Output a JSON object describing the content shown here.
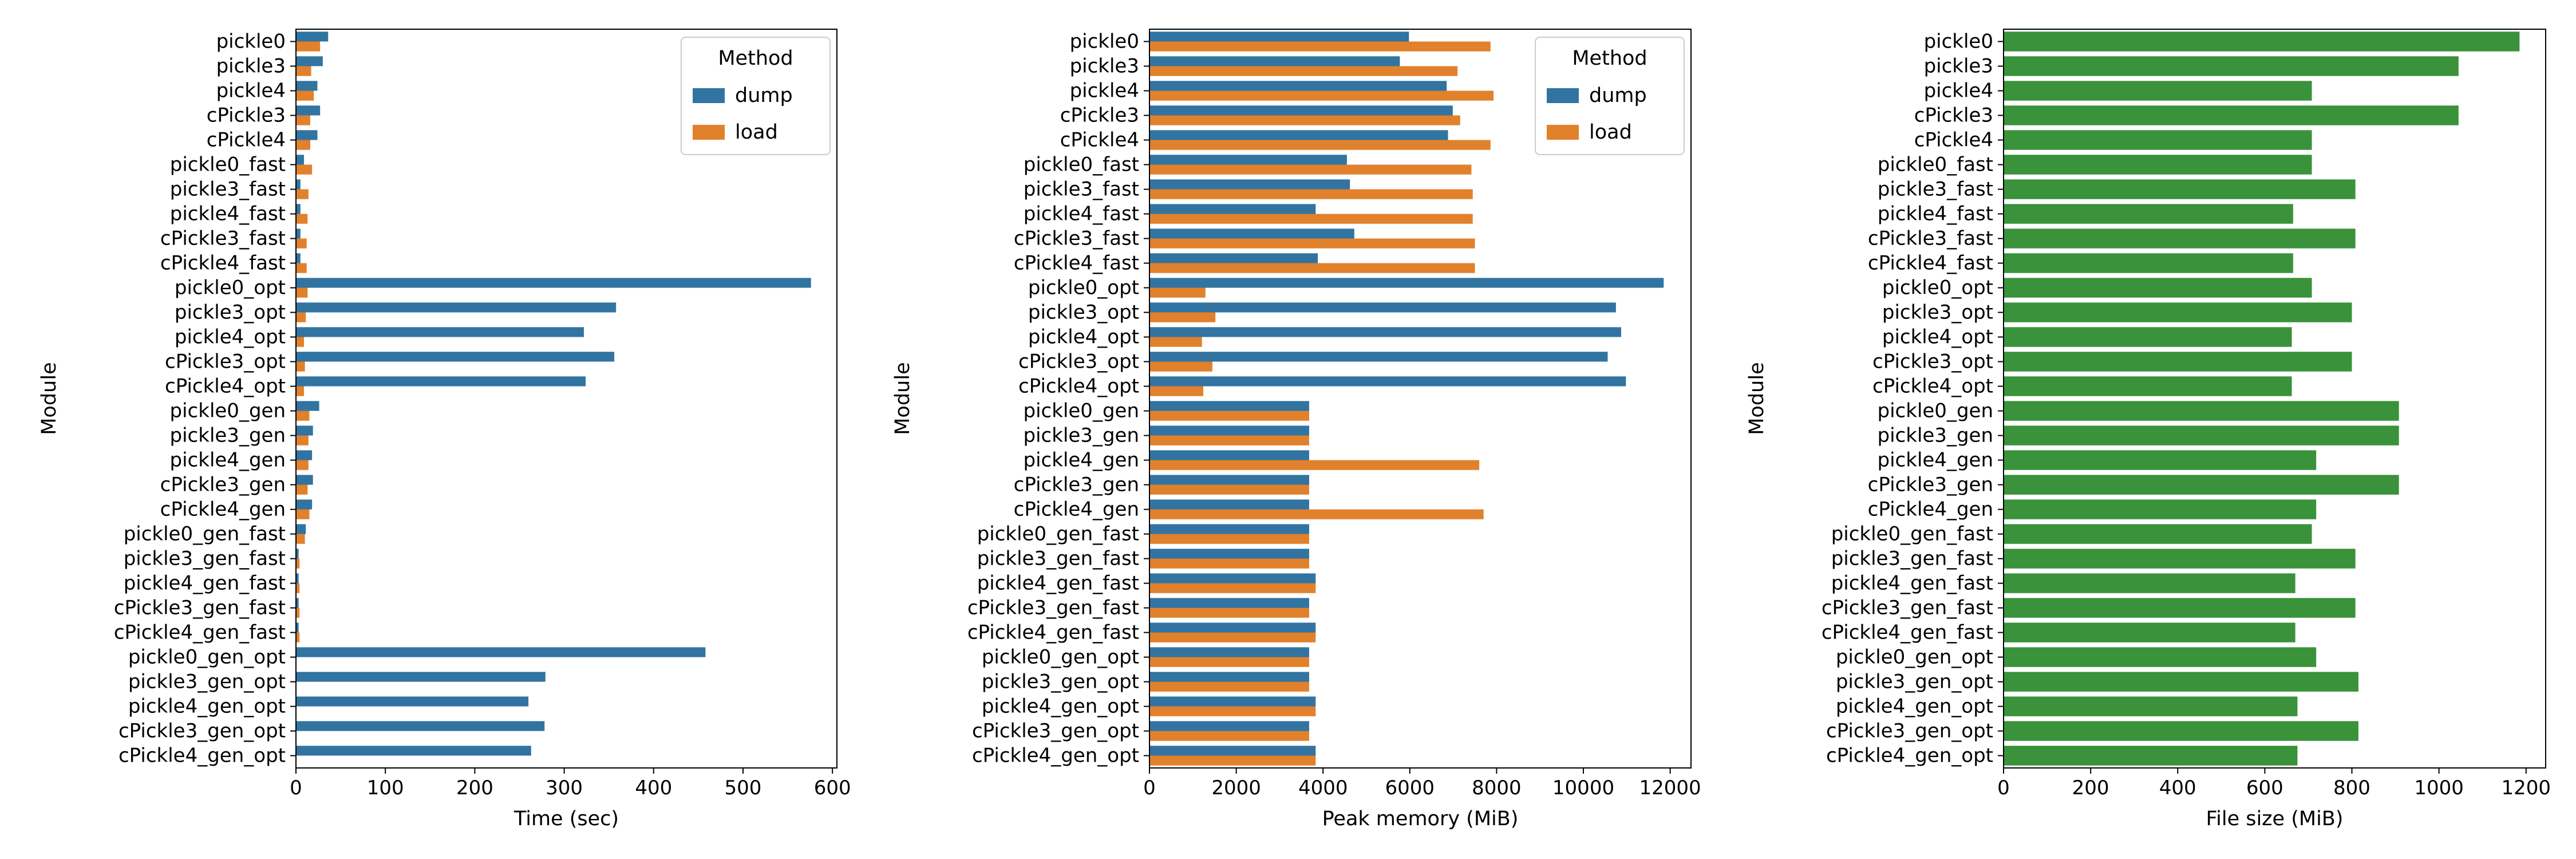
{
  "colors": {
    "dump": "#3274a1",
    "load": "#e1812c",
    "filesize": "#3a923a"
  },
  "chart_data": [
    {
      "type": "bar",
      "orientation": "horizontal",
      "ylabel": "Module",
      "xlabel": "Time (sec)",
      "xlim": [
        0,
        605
      ],
      "xticks": [
        0,
        100,
        200,
        300,
        400,
        500,
        600
      ],
      "grid": false,
      "legend": {
        "title": "Method",
        "placement": "top-right",
        "entries": [
          "dump",
          "load"
        ]
      },
      "categories": [
        "pickle0",
        "pickle3",
        "pickle4",
        "cPickle3",
        "cPickle4",
        "pickle0_fast",
        "pickle3_fast",
        "pickle4_fast",
        "cPickle3_fast",
        "cPickle4_fast",
        "pickle0_opt",
        "pickle3_opt",
        "pickle4_opt",
        "cPickle3_opt",
        "cPickle4_opt",
        "pickle0_gen",
        "pickle3_gen",
        "pickle4_gen",
        "cPickle3_gen",
        "cPickle4_gen",
        "pickle0_gen_fast",
        "pickle3_gen_fast",
        "pickle4_gen_fast",
        "cPickle3_gen_fast",
        "cPickle4_gen_fast",
        "pickle0_gen_opt",
        "pickle3_gen_opt",
        "pickle4_gen_opt",
        "cPickle3_gen_opt",
        "cPickle4_gen_opt"
      ],
      "series": [
        {
          "name": "dump",
          "values": [
            36,
            30,
            24,
            27,
            24,
            9,
            5,
            5,
            5,
            5,
            576,
            358,
            322,
            356,
            324,
            26,
            19,
            18,
            19,
            18,
            11,
            3,
            3,
            3,
            3,
            458,
            279,
            260,
            278,
            263
          ]
        },
        {
          "name": "load",
          "values": [
            27,
            17,
            20,
            16,
            16,
            18,
            14,
            13,
            12,
            12,
            13,
            11,
            9,
            10,
            9,
            15,
            14,
            14,
            13,
            15,
            10,
            4,
            4,
            4,
            4,
            0,
            0,
            0,
            0,
            0
          ]
        }
      ]
    },
    {
      "type": "bar",
      "orientation": "horizontal",
      "ylabel": "Module",
      "xlabel": "Peak memory (MiB)",
      "xlim": [
        0,
        12480
      ],
      "xticks": [
        0,
        2000,
        4000,
        6000,
        8000,
        10000,
        12000
      ],
      "grid": false,
      "legend": {
        "title": "Method",
        "placement": "top-right",
        "entries": [
          "dump",
          "load"
        ]
      },
      "categories": [
        "pickle0",
        "pickle3",
        "pickle4",
        "cPickle3",
        "cPickle4",
        "pickle0_fast",
        "pickle3_fast",
        "pickle4_fast",
        "cPickle3_fast",
        "cPickle4_fast",
        "pickle0_opt",
        "pickle3_opt",
        "pickle4_opt",
        "cPickle3_opt",
        "cPickle4_opt",
        "pickle0_gen",
        "pickle3_gen",
        "pickle4_gen",
        "cPickle3_gen",
        "cPickle4_gen",
        "pickle0_gen_fast",
        "pickle3_gen_fast",
        "pickle4_gen_fast",
        "cPickle3_gen_fast",
        "cPickle4_gen_fast",
        "pickle0_gen_opt",
        "pickle3_gen_opt",
        "pickle4_gen_opt",
        "cPickle3_gen_opt",
        "cPickle4_gen_opt"
      ],
      "series": [
        {
          "name": "dump",
          "values": [
            5980,
            5770,
            6850,
            6990,
            6880,
            4550,
            4620,
            3830,
            4720,
            3880,
            11850,
            10750,
            10870,
            10560,
            10980,
            3680,
            3680,
            3680,
            3680,
            3680,
            3680,
            3680,
            3830,
            3680,
            3830,
            3680,
            3680,
            3830,
            3680,
            3830
          ]
        },
        {
          "name": "load",
          "values": [
            7860,
            7100,
            7930,
            7160,
            7860,
            7420,
            7450,
            7450,
            7500,
            7500,
            1290,
            1520,
            1210,
            1450,
            1240,
            3680,
            3680,
            7600,
            3680,
            7700,
            3680,
            3680,
            3830,
            3680,
            3830,
            3680,
            3680,
            3830,
            3680,
            3830
          ]
        }
      ]
    },
    {
      "type": "bar",
      "orientation": "horizontal",
      "ylabel": "Module",
      "xlabel": "File size (MiB)",
      "xlim": [
        0,
        1245
      ],
      "xticks": [
        0,
        200,
        400,
        600,
        800,
        1000,
        1200
      ],
      "grid": false,
      "categories": [
        "pickle0",
        "pickle3",
        "pickle4",
        "cPickle3",
        "cPickle4",
        "pickle0_fast",
        "pickle3_fast",
        "pickle4_fast",
        "cPickle3_fast",
        "cPickle4_fast",
        "pickle0_opt",
        "pickle3_opt",
        "pickle4_opt",
        "cPickle3_opt",
        "cPickle4_opt",
        "pickle0_gen",
        "pickle3_gen",
        "pickle4_gen",
        "cPickle3_gen",
        "cPickle4_gen",
        "pickle0_gen_fast",
        "pickle3_gen_fast",
        "pickle4_gen_fast",
        "cPickle3_gen_fast",
        "cPickle4_gen_fast",
        "pickle0_gen_opt",
        "pickle3_gen_opt",
        "pickle4_gen_opt",
        "cPickle3_gen_opt",
        "cPickle4_gen_opt"
      ],
      "series": [
        {
          "values": [
            1185,
            1045,
            708,
            1045,
            708,
            708,
            808,
            665,
            808,
            665,
            708,
            800,
            662,
            800,
            662,
            908,
            908,
            718,
            908,
            718,
            708,
            808,
            670,
            808,
            670,
            718,
            815,
            675,
            815,
            675
          ]
        }
      ]
    }
  ]
}
